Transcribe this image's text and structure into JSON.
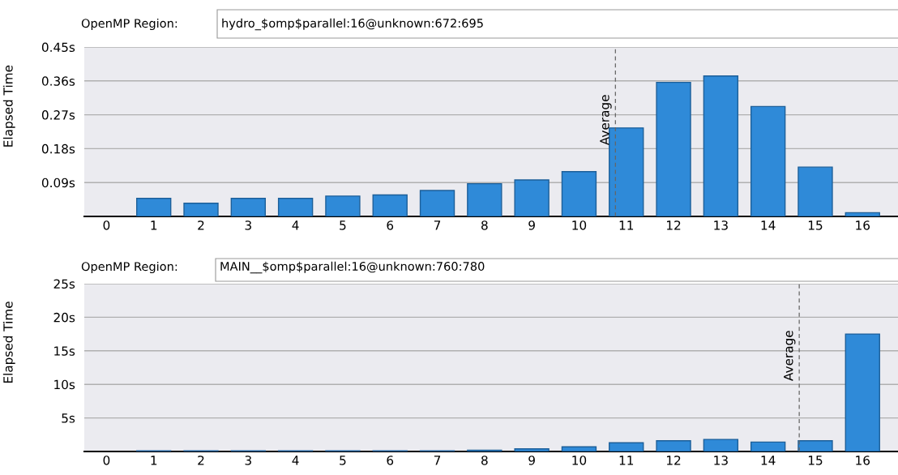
{
  "chart_data": [
    {
      "type": "bar",
      "title": "OpenMP Region:",
      "subtitle": "hydro_$omp$parallel:16@unknown:672:695",
      "ylabel": "Elapsed Time",
      "x": [
        0,
        1,
        2,
        3,
        4,
        5,
        6,
        7,
        8,
        9,
        10,
        11,
        12,
        13,
        14,
        15,
        16
      ],
      "values": [
        0,
        0.048,
        0.035,
        0.048,
        0.048,
        0.054,
        0.057,
        0.069,
        0.087,
        0.097,
        0.119,
        0.235,
        0.356,
        0.373,
        0.292,
        0.131,
        0.01
      ],
      "color": "#2f8ad8",
      "xlim": [
        -0.47,
        16.75
      ],
      "xticks": [
        0,
        1,
        2,
        3,
        4,
        5,
        6,
        7,
        8,
        9,
        10,
        11,
        12,
        13,
        14,
        15,
        16
      ],
      "ylim": [
        0,
        0.45
      ],
      "yticks": [
        {
          "value": 0.09,
          "label": "0.09s"
        },
        {
          "value": 0.18,
          "label": "0.18s"
        },
        {
          "value": 0.27,
          "label": "0.27s"
        },
        {
          "value": 0.36,
          "label": "0.36s"
        },
        {
          "value": 0.45,
          "label": "0.45s"
        }
      ],
      "grid": "y",
      "legend": false,
      "ref_lines": [
        {
          "axis": "x",
          "value": 10.77,
          "label": "Average",
          "color": "#666666",
          "line_style": "dashed"
        }
      ]
    },
    {
      "type": "bar",
      "title": "OpenMP Region:",
      "subtitle": "MAIN__$omp$parallel:16@unknown:760:780",
      "ylabel": "Elapsed Time",
      "x": [
        0,
        1,
        2,
        3,
        4,
        5,
        6,
        7,
        8,
        9,
        10,
        11,
        12,
        13,
        14,
        15,
        16
      ],
      "values": [
        0,
        0.1,
        0.1,
        0.1,
        0.1,
        0.1,
        0.1,
        0.1,
        0.2,
        0.4,
        0.7,
        1.3,
        1.6,
        1.8,
        1.4,
        1.6,
        17.5
      ],
      "color": "#2f8ad8",
      "xlim": [
        -0.47,
        16.75
      ],
      "xticks": [
        0,
        1,
        2,
        3,
        4,
        5,
        6,
        7,
        8,
        9,
        10,
        11,
        12,
        13,
        14,
        15,
        16
      ],
      "ylim": [
        0,
        25
      ],
      "yticks": [
        {
          "value": 5,
          "label": "5s"
        },
        {
          "value": 10,
          "label": "10s"
        },
        {
          "value": 15,
          "label": "15s"
        },
        {
          "value": 20,
          "label": "20s"
        },
        {
          "value": 25,
          "label": "25s"
        }
      ],
      "grid": "y",
      "legend": false,
      "ref_lines": [
        {
          "axis": "x",
          "value": 14.66,
          "label": "Average",
          "color": "#666666",
          "line_style": "dashed"
        }
      ]
    }
  ]
}
